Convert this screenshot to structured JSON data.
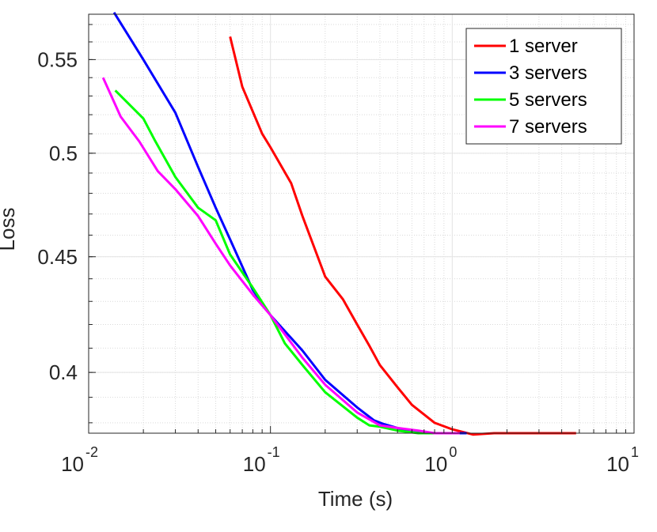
{
  "chart_data": {
    "type": "line",
    "title": "",
    "xlabel": "Time (s)",
    "ylabel": "Loss",
    "xscale": "log",
    "yscale": "log",
    "xlim": [
      0.01,
      10
    ],
    "ylim": [
      0.376,
      0.576
    ],
    "grid": true,
    "legend_position": "top-right",
    "x_ticks": [
      {
        "value": 0.01,
        "base": "10",
        "exp": "-2"
      },
      {
        "value": 0.1,
        "base": "10",
        "exp": "-1"
      },
      {
        "value": 1,
        "base": "10",
        "exp": "0"
      },
      {
        "value": 10,
        "base": "10",
        "exp": "1"
      }
    ],
    "y_ticks": [
      {
        "value": 0.4,
        "label": "0.4"
      },
      {
        "value": 0.45,
        "label": "0.45"
      },
      {
        "value": 0.5,
        "label": "0.5"
      },
      {
        "value": 0.55,
        "label": "0.55"
      }
    ],
    "series": [
      {
        "name": "1 server",
        "color": "#ff0000",
        "x": [
          0.06,
          0.07,
          0.09,
          0.1,
          0.13,
          0.15,
          0.2,
          0.25,
          0.3,
          0.35,
          0.4,
          0.5,
          0.6,
          0.8,
          1.0,
          1.3,
          1.7,
          2.5,
          4.8
        ],
        "y": [
          0.563,
          0.535,
          0.51,
          0.503,
          0.485,
          0.469,
          0.441,
          0.431,
          0.42,
          0.411,
          0.403,
          0.394,
          0.387,
          0.38,
          0.3775,
          0.3755,
          0.376,
          0.376,
          0.376
        ]
      },
      {
        "name": "3 servers",
        "color": "#0000ff",
        "x": [
          0.0138,
          0.02,
          0.03,
          0.04,
          0.05,
          0.06,
          0.08,
          0.1,
          0.15,
          0.2,
          0.3,
          0.37,
          0.42,
          0.5,
          0.6,
          0.75,
          0.9,
          1.2
        ],
        "y": [
          0.577,
          0.55,
          0.521,
          0.493,
          0.473,
          0.458,
          0.435,
          0.424,
          0.409,
          0.397,
          0.386,
          0.381,
          0.3795,
          0.378,
          0.3765,
          0.376,
          0.376,
          0.376
        ]
      },
      {
        "name": "5 servers",
        "color": "#00ff00",
        "x": [
          0.014,
          0.02,
          0.023,
          0.03,
          0.04,
          0.05,
          0.06,
          0.08,
          0.1,
          0.12,
          0.15,
          0.2,
          0.3,
          0.35,
          0.4,
          0.5,
          0.65,
          0.8
        ],
        "y": [
          0.533,
          0.518,
          0.507,
          0.488,
          0.473,
          0.467,
          0.451,
          0.436,
          0.424,
          0.412,
          0.403,
          0.392,
          0.382,
          0.379,
          0.3785,
          0.377,
          0.376,
          0.376
        ]
      },
      {
        "name": "7 servers",
        "color": "#ff00ff",
        "x": [
          0.012,
          0.015,
          0.019,
          0.024,
          0.03,
          0.04,
          0.05,
          0.06,
          0.08,
          0.1,
          0.15,
          0.2,
          0.3,
          0.4,
          0.5,
          0.65,
          0.8,
          1.1
        ],
        "y": [
          0.54,
          0.519,
          0.506,
          0.491,
          0.482,
          0.469,
          0.456,
          0.446,
          0.433,
          0.424,
          0.406,
          0.395,
          0.384,
          0.379,
          0.378,
          0.377,
          0.376,
          0.376
        ]
      }
    ]
  }
}
